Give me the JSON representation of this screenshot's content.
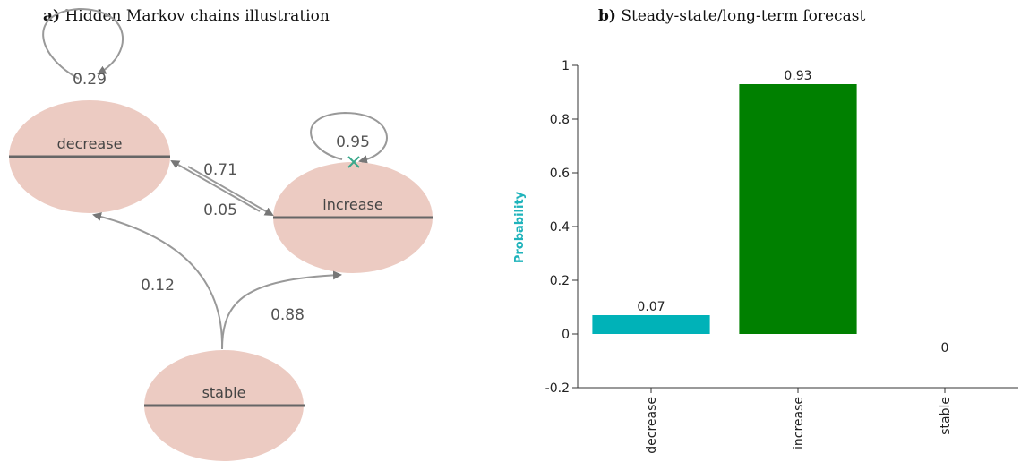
{
  "panel_a": {
    "letter": "a)",
    "title": "Hidden Markov chains illustration",
    "states": [
      {
        "id": "decrease",
        "label": "decrease"
      },
      {
        "id": "increase",
        "label": "increase"
      },
      {
        "id": "stable",
        "label": "stable"
      }
    ],
    "transitions": [
      {
        "from": "decrease",
        "to": "decrease",
        "prob": "0.29"
      },
      {
        "from": "increase",
        "to": "increase",
        "prob": "0.95"
      },
      {
        "from": "decrease",
        "to": "increase",
        "prob": "0.71"
      },
      {
        "from": "increase",
        "to": "decrease",
        "prob": "0.05"
      },
      {
        "from": "stable",
        "to": "decrease",
        "prob": "0.12"
      },
      {
        "from": "stable",
        "to": "increase",
        "prob": "0.88"
      }
    ]
  },
  "panel_b": {
    "letter": "b)",
    "title": "Steady-state/long-term forecast"
  },
  "chart_data": {
    "type": "bar",
    "title": "Steady-state/long-term forecast",
    "ylabel": "Probability",
    "xlabel": "",
    "categories": [
      "decrease",
      "increase",
      "stable"
    ],
    "values": [
      0.07,
      0.93,
      0
    ],
    "value_labels": [
      "0.07",
      "0.93",
      "0"
    ],
    "colors": [
      "#00b2b8",
      "#008000",
      "#008000"
    ],
    "ylim": [
      -0.2,
      1
    ],
    "yticks": [
      -0.2,
      0,
      0.2,
      0.4,
      0.6,
      0.8,
      1
    ],
    "ytick_labels": [
      "-0.2",
      "0",
      "0.2",
      "0.4",
      "0.6",
      "0.8",
      "1"
    ],
    "ylabel_color": "#1fb3bb",
    "grid": false,
    "legend": "none"
  }
}
